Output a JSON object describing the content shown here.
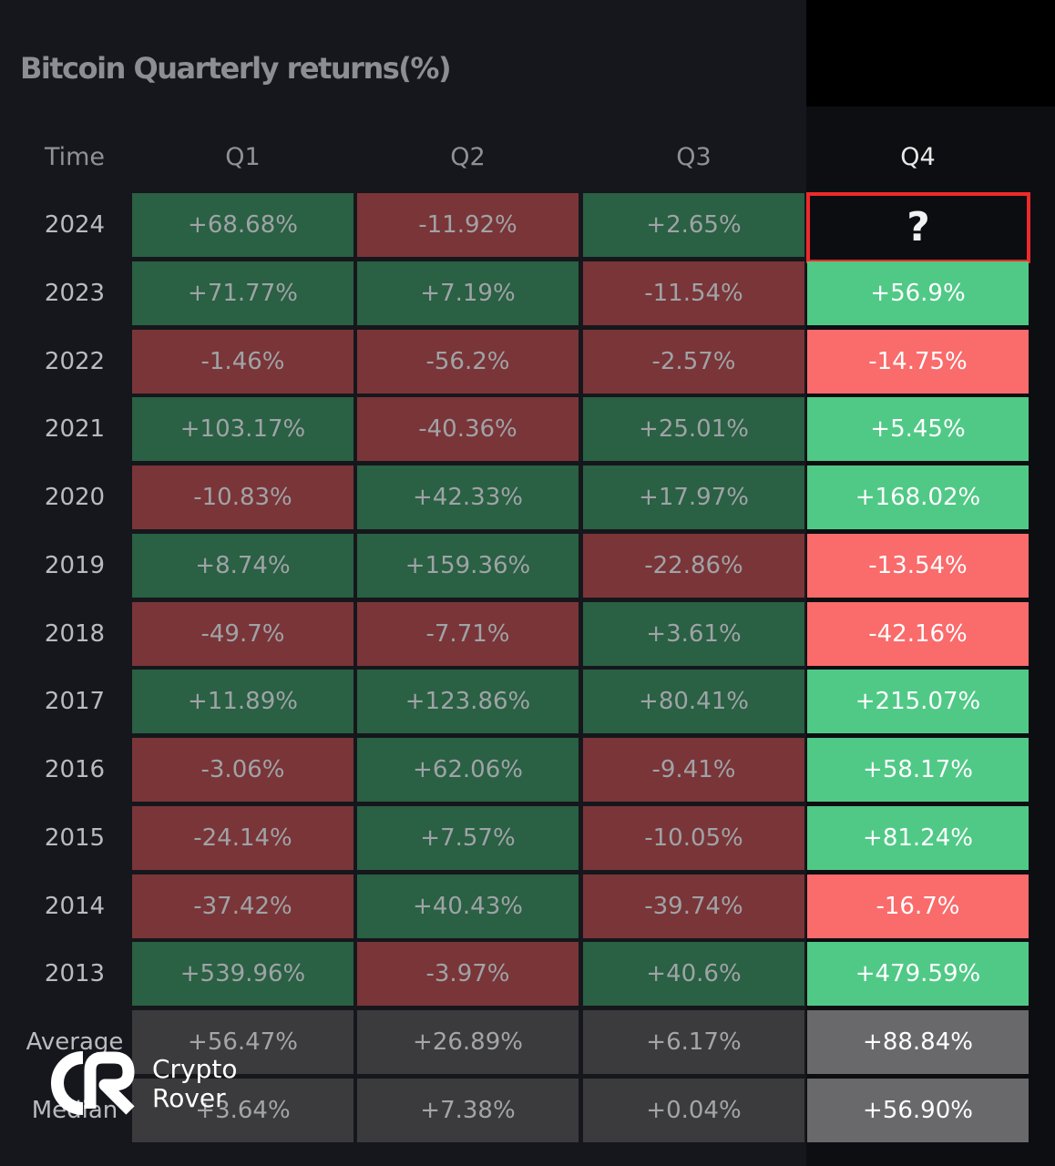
{
  "title": "Bitcoin Quarterly returns(%)",
  "chart_data": {
    "type": "table",
    "title": "Bitcoin Quarterly returns(%)",
    "columns": [
      "Time",
      "Q1",
      "Q2",
      "Q3",
      "Q4"
    ],
    "rows": [
      {
        "label": "2024",
        "values": [
          "+68.68%",
          "-11.92%",
          "+2.65%",
          "?"
        ]
      },
      {
        "label": "2023",
        "values": [
          "+71.77%",
          "+7.19%",
          "-11.54%",
          "+56.9%"
        ]
      },
      {
        "label": "2022",
        "values": [
          "-1.46%",
          "-56.2%",
          "-2.57%",
          "-14.75%"
        ]
      },
      {
        "label": "2021",
        "values": [
          "+103.17%",
          "-40.36%",
          "+25.01%",
          "+5.45%"
        ]
      },
      {
        "label": "2020",
        "values": [
          "-10.83%",
          "+42.33%",
          "+17.97%",
          "+168.02%"
        ]
      },
      {
        "label": "2019",
        "values": [
          "+8.74%",
          "+159.36%",
          "-22.86%",
          "-13.54%"
        ]
      },
      {
        "label": "2018",
        "values": [
          "-49.7%",
          "-7.71%",
          "+3.61%",
          "-42.16%"
        ]
      },
      {
        "label": "2017",
        "values": [
          "+11.89%",
          "+123.86%",
          "+80.41%",
          "+215.07%"
        ]
      },
      {
        "label": "2016",
        "values": [
          "-3.06%",
          "+62.06%",
          "-9.41%",
          "+58.17%"
        ]
      },
      {
        "label": "2015",
        "values": [
          "-24.14%",
          "+7.57%",
          "-10.05%",
          "+81.24%"
        ]
      },
      {
        "label": "2014",
        "values": [
          "-37.42%",
          "+40.43%",
          "-39.74%",
          "-16.7%"
        ]
      },
      {
        "label": "2013",
        "values": [
          "+539.96%",
          "-3.97%",
          "+40.6%",
          "+479.59%"
        ]
      },
      {
        "label": "Average",
        "values": [
          "+56.47%",
          "+26.89%",
          "+6.17%",
          "+88.84%"
        ]
      },
      {
        "label": "Median",
        "values": [
          "+3.64%",
          "+7.38%",
          "+0.04%",
          "+56.90%"
        ]
      }
    ],
    "colors": {
      "positive": "#2a6043",
      "negative": "#7a3538",
      "q4_positive": "#50c986",
      "q4_negative": "#fa6b6b",
      "summary": "#3b3b3d",
      "q4_summary": "#69696b",
      "highlight_border": "#ee2a2a"
    }
  },
  "watermark": {
    "line1": "Crypto",
    "line2": "Rover"
  }
}
